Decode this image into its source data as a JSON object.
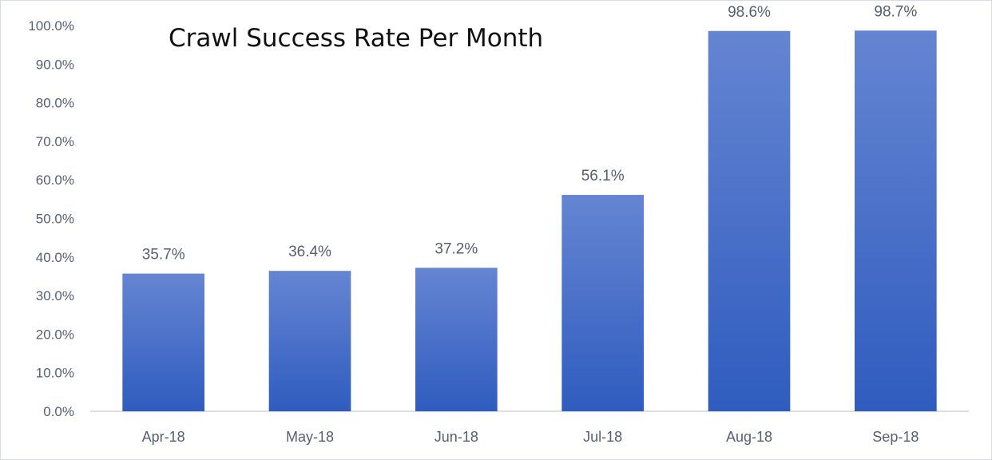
{
  "chart_data": {
    "type": "bar",
    "title": "Crawl Success Rate Per Month",
    "categories": [
      "Apr-18",
      "May-18",
      "Jun-18",
      "Jul-18",
      "Aug-18",
      "Sep-18"
    ],
    "values": [
      35.7,
      36.4,
      37.2,
      56.1,
      98.6,
      98.7
    ],
    "data_labels": [
      "35.7%",
      "36.4%",
      "37.2%",
      "56.1%",
      "98.6%",
      "98.7%"
    ],
    "y_ticks": [
      "0.0%",
      "10.0%",
      "20.0%",
      "30.0%",
      "40.0%",
      "50.0%",
      "60.0%",
      "70.0%",
      "80.0%",
      "90.0%",
      "100.0%"
    ],
    "ylim": [
      0,
      100
    ],
    "xlabel": "",
    "ylabel": "",
    "grid": false,
    "legend": "none",
    "colors": {
      "bar_top": "#6585d2",
      "bar_bottom": "#2f5cbf",
      "axis_line": "#d0d4dc",
      "label_text": "#555f72",
      "title_text": "#111111"
    }
  }
}
